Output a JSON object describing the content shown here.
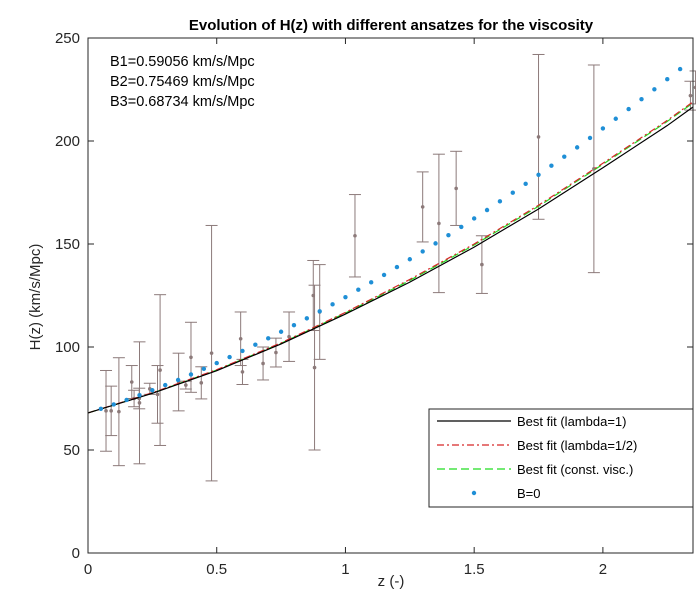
{
  "chart_data": {
    "type": "line",
    "title": "Evolution of H(z) with different ansatzes for the viscosity",
    "xlabel": "z   (-)",
    "ylabel": "H(z)   (km/s/Mpc)",
    "xlim": [
      0,
      2.35
    ],
    "ylim": [
      0,
      250
    ],
    "xticks": [
      0,
      0.5,
      1,
      1.5,
      2
    ],
    "xtick_labels": [
      "0",
      "0.5",
      "1",
      "1.5",
      "2"
    ],
    "yticks": [
      0,
      50,
      100,
      150,
      200,
      250
    ],
    "ytick_labels": [
      "0",
      "50",
      "100",
      "150",
      "200",
      "250"
    ],
    "grid": false,
    "legend_position": "bottom-right",
    "annotations": [
      "B1=0.59056  km/s/Mpc",
      "B2=0.75469  km/s/Mpc",
      "B3=0.68734  km/s/Mpc"
    ],
    "colors": {
      "best_fit_lambda1": "#000000",
      "best_fit_lambda_half": "#d62728",
      "best_fit_const_visc": "#22dd22",
      "b_zero": "#1f8fd6",
      "observations": "#8c7a7a"
    },
    "series": [
      {
        "name": "Best fit (lambda=1)",
        "kind": "line",
        "style": "solid",
        "x": [
          0,
          0.25,
          0.5,
          0.75,
          1.0,
          1.25,
          1.5,
          1.75,
          2.0,
          2.25,
          2.35
        ],
        "y": [
          68.0,
          77.5,
          88.5,
          101.5,
          116.0,
          131.5,
          148.5,
          167.0,
          187.0,
          207.5,
          216.5
        ]
      },
      {
        "name": "Best fit (lambda=1/2)",
        "kind": "line",
        "style": "dashdot",
        "x": [
          0,
          0.25,
          0.5,
          0.75,
          1.0,
          1.25,
          1.5,
          1.75,
          2.0,
          2.25,
          2.35
        ],
        "y": [
          68.0,
          77.8,
          89.0,
          102.0,
          116.8,
          132.8,
          150.0,
          168.8,
          189.2,
          210.0,
          219.0
        ]
      },
      {
        "name": "Best fit (const. visc.)",
        "kind": "line",
        "style": "dashed",
        "x": [
          0,
          0.25,
          0.5,
          0.75,
          1.0,
          1.25,
          1.5,
          1.75,
          2.0,
          2.25,
          2.35
        ],
        "y": [
          68.0,
          77.6,
          88.8,
          101.8,
          116.5,
          132.3,
          149.5,
          168.3,
          188.7,
          209.5,
          218.5
        ]
      },
      {
        "name": "B=0",
        "kind": "points",
        "x": [
          0.05,
          0.1,
          0.15,
          0.2,
          0.25,
          0.3,
          0.35,
          0.4,
          0.45,
          0.5,
          0.55,
          0.6,
          0.65,
          0.7,
          0.75,
          0.8,
          0.85,
          0.9,
          0.95,
          1.0,
          1.05,
          1.1,
          1.15,
          1.2,
          1.25,
          1.3,
          1.35,
          1.4,
          1.45,
          1.5,
          1.55,
          1.6,
          1.65,
          1.7,
          1.75,
          1.8,
          1.85,
          1.9,
          1.95,
          2.0,
          2.05,
          2.1,
          2.15,
          2.2,
          2.25,
          2.3
        ],
        "y": [
          70.0,
          72.1,
          74.3,
          76.6,
          79.0,
          81.5,
          84.0,
          86.7,
          89.4,
          92.2,
          95.1,
          98.1,
          101.1,
          104.2,
          107.4,
          110.6,
          113.9,
          117.3,
          120.7,
          124.2,
          127.8,
          131.4,
          135.0,
          138.8,
          142.6,
          146.4,
          150.3,
          154.3,
          158.3,
          162.4,
          166.5,
          170.7,
          174.9,
          179.2,
          183.6,
          188.0,
          192.4,
          196.9,
          201.5,
          206.1,
          210.8,
          215.5,
          220.3,
          225.1,
          230.0,
          234.9
        ]
      }
    ],
    "observations": {
      "z": [
        0.07,
        0.09,
        0.12,
        0.17,
        0.179,
        0.199,
        0.2,
        0.24,
        0.27,
        0.28,
        0.352,
        0.38,
        0.4,
        0.44,
        0.48,
        0.593,
        0.6,
        0.68,
        0.73,
        0.781,
        0.875,
        0.88,
        0.9,
        1.037,
        1.3,
        1.363,
        1.43,
        1.53,
        1.75,
        1.965,
        2.34,
        2.36
      ],
      "H": [
        69,
        69,
        68.6,
        83,
        75,
        75,
        72.9,
        79.7,
        77,
        88.8,
        83,
        81.5,
        95,
        82.6,
        97,
        104,
        87.9,
        92,
        97.3,
        105,
        125,
        90,
        117,
        154,
        168,
        160,
        177,
        140,
        202,
        186.5,
        222,
        226
      ],
      "sigma": [
        19.6,
        12,
        26.2,
        8,
        4,
        5,
        29.6,
        2.7,
        14,
        36.6,
        14,
        1.9,
        17,
        7.8,
        62,
        13,
        6.1,
        8,
        7,
        12,
        17,
        40,
        23,
        20,
        17,
        33.6,
        18,
        14,
        40,
        50.4,
        7,
        8
      ]
    }
  }
}
